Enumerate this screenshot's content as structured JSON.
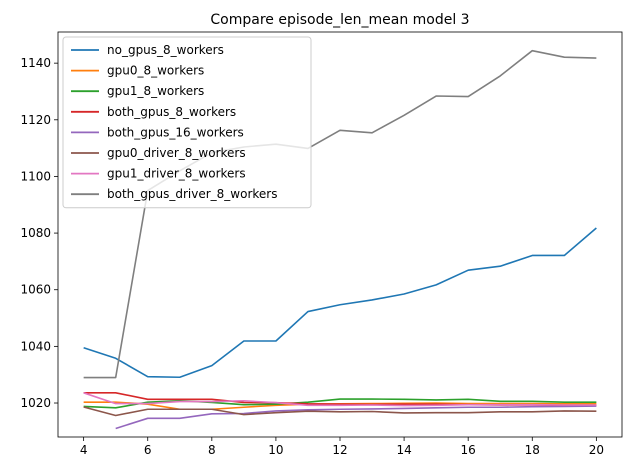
{
  "chart_data": {
    "type": "line",
    "title": "Compare episode_len_mean model 3",
    "xlabel": "",
    "ylabel": "",
    "xlim": [
      3.2,
      20.8
    ],
    "ylim": [
      1008,
      1151
    ],
    "xticks": [
      4,
      6,
      8,
      10,
      12,
      14,
      16,
      18,
      20
    ],
    "yticks": [
      1020,
      1040,
      1060,
      1080,
      1100,
      1120,
      1140
    ],
    "grid": false,
    "legend": "top-left",
    "series": [
      {
        "name": "no_gpus_8_workers",
        "color": "#1f77b4",
        "x": [
          4,
          5,
          6,
          7,
          8,
          9,
          10,
          11,
          12,
          13,
          14,
          15,
          16,
          17,
          18,
          19,
          20
        ],
        "y": [
          1039.5,
          1035.8,
          1029.3,
          1029.1,
          1033.2,
          1041.9,
          1041.9,
          1052.3,
          1054.7,
          1056.4,
          1058.5,
          1061.7,
          1066.9,
          1068.3,
          1072.1,
          1072.1,
          1081.8
        ]
      },
      {
        "name": "gpu0_8_workers",
        "color": "#ff7f0e",
        "x": [
          4,
          5,
          6,
          7,
          8,
          9,
          10,
          11,
          12,
          13,
          14,
          15,
          16,
          17,
          18,
          19,
          20
        ],
        "y": [
          1020.3,
          1020.3,
          1019.6,
          1017.8,
          1017.8,
          1018.5,
          1019.2,
          1019.6,
          1019.7,
          1019.8,
          1019.9,
          1020.0,
          1019.8,
          1019.8,
          1019.8,
          1019.7,
          1019.7
        ]
      },
      {
        "name": "gpu1_8_workers",
        "color": "#2ca02c",
        "x": [
          4,
          5,
          6,
          7,
          8,
          9,
          10,
          11,
          12,
          13,
          14,
          15,
          16,
          17,
          18,
          19,
          20
        ],
        "y": [
          1018.8,
          1018.3,
          1020.3,
          1020.8,
          1020.2,
          1019.4,
          1019.6,
          1020.3,
          1021.4,
          1021.4,
          1021.3,
          1021.1,
          1021.3,
          1020.6,
          1020.6,
          1020.3,
          1020.3
        ]
      },
      {
        "name": "both_gpus_8_workers",
        "color": "#d62728",
        "x": [
          4,
          5,
          6,
          7,
          8,
          9,
          10,
          11,
          12,
          13,
          14,
          15,
          16,
          17,
          18,
          19,
          20
        ],
        "y": [
          1023.6,
          1023.6,
          1021.3,
          1021.3,
          1021.3,
          1020.2,
          1020.1,
          1019.7,
          1019.6,
          1019.5,
          1019.6,
          1019.6,
          1019.4,
          1019.3,
          1019.3,
          1019.2,
          1019.2
        ]
      },
      {
        "name": "both_gpus_16_workers",
        "color": "#9467bd",
        "x": [
          5,
          6,
          7,
          8,
          9,
          10,
          11,
          12,
          13,
          14,
          15,
          16,
          17,
          18,
          19,
          20
        ],
        "y": [
          1011.0,
          1014.6,
          1014.6,
          1016.2,
          1016.3,
          1017.2,
          1017.6,
          1017.8,
          1017.9,
          1018.1,
          1018.3,
          1018.5,
          1018.5,
          1018.7,
          1018.8,
          1018.9
        ]
      },
      {
        "name": "gpu0_driver_8_workers",
        "color": "#8c564b",
        "x": [
          4,
          5,
          6,
          7,
          8,
          9,
          10,
          11,
          12,
          13,
          14,
          15,
          16,
          17,
          18,
          19,
          20
        ],
        "y": [
          1018.6,
          1015.6,
          1017.8,
          1017.8,
          1017.8,
          1015.9,
          1016.6,
          1017.1,
          1016.9,
          1017.0,
          1016.5,
          1016.6,
          1016.6,
          1016.9,
          1016.9,
          1017.2,
          1017.1
        ]
      },
      {
        "name": "gpu1_driver_8_workers",
        "color": "#e377c2",
        "x": [
          4,
          5,
          6,
          7,
          8,
          9,
          10,
          11,
          12,
          13,
          14,
          15,
          16,
          17,
          18,
          19,
          20
        ],
        "y": [
          1023.6,
          1019.8,
          1019.8,
          1020.5,
          1020.5,
          1020.8,
          1020.1,
          1019.2,
          1019.2,
          1019.3,
          1019.1,
          1019.2,
          1019.4,
          1019.4,
          1019.4,
          1019.3,
          1019.3
        ]
      },
      {
        "name": "both_gpus_driver_8_workers",
        "color": "#7f7f7f",
        "x": [
          4,
          5,
          6,
          7,
          8,
          9,
          10,
          11,
          12,
          13,
          14,
          15,
          16,
          17,
          18,
          19,
          20
        ],
        "y": [
          1029.0,
          1029.0,
          1095.0,
          1102.0,
          1108.4,
          1110.4,
          1111.4,
          1109.9,
          1116.3,
          1115.4,
          1121.6,
          1128.4,
          1128.2,
          1135.5,
          1144.4,
          1142.1,
          1141.8
        ]
      }
    ]
  }
}
